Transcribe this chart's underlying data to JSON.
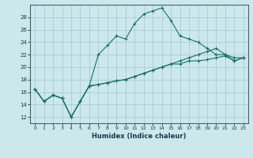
{
  "xlabel": "Humidex (Indice chaleur)",
  "bg_color": "#cce8ec",
  "grid_color": "#a0c8cc",
  "line_color": "#1a6e6e",
  "xlim": [
    -0.5,
    23.5
  ],
  "ylim": [
    11.0,
    30.0
  ],
  "yticks": [
    12,
    14,
    16,
    18,
    20,
    22,
    24,
    26,
    28
  ],
  "xticks": [
    0,
    1,
    2,
    3,
    4,
    5,
    6,
    7,
    8,
    9,
    10,
    11,
    12,
    13,
    14,
    15,
    16,
    17,
    18,
    19,
    20,
    21,
    22,
    23
  ],
  "series1": [
    16.5,
    14.5,
    15.5,
    15.0,
    12.0,
    14.5,
    17.0,
    22.0,
    23.5,
    25.0,
    24.5,
    27.0,
    28.5,
    29.0,
    29.5,
    27.5,
    25.0,
    24.5,
    24.0,
    23.0,
    22.0,
    22.0,
    21.0,
    21.5
  ],
  "series2": [
    16.5,
    14.5,
    15.5,
    15.0,
    12.0,
    14.5,
    17.0,
    17.2,
    17.5,
    17.8,
    18.0,
    18.5,
    19.0,
    19.5,
    20.0,
    20.5,
    21.0,
    21.5,
    22.0,
    22.5,
    23.0,
    22.0,
    21.5,
    21.5
  ],
  "series3": [
    16.5,
    14.5,
    15.5,
    15.0,
    12.0,
    14.5,
    17.0,
    17.2,
    17.5,
    17.8,
    18.0,
    18.5,
    19.0,
    19.5,
    20.0,
    20.5,
    20.5,
    21.0,
    21.0,
    21.2,
    21.5,
    21.8,
    21.0,
    21.5
  ]
}
